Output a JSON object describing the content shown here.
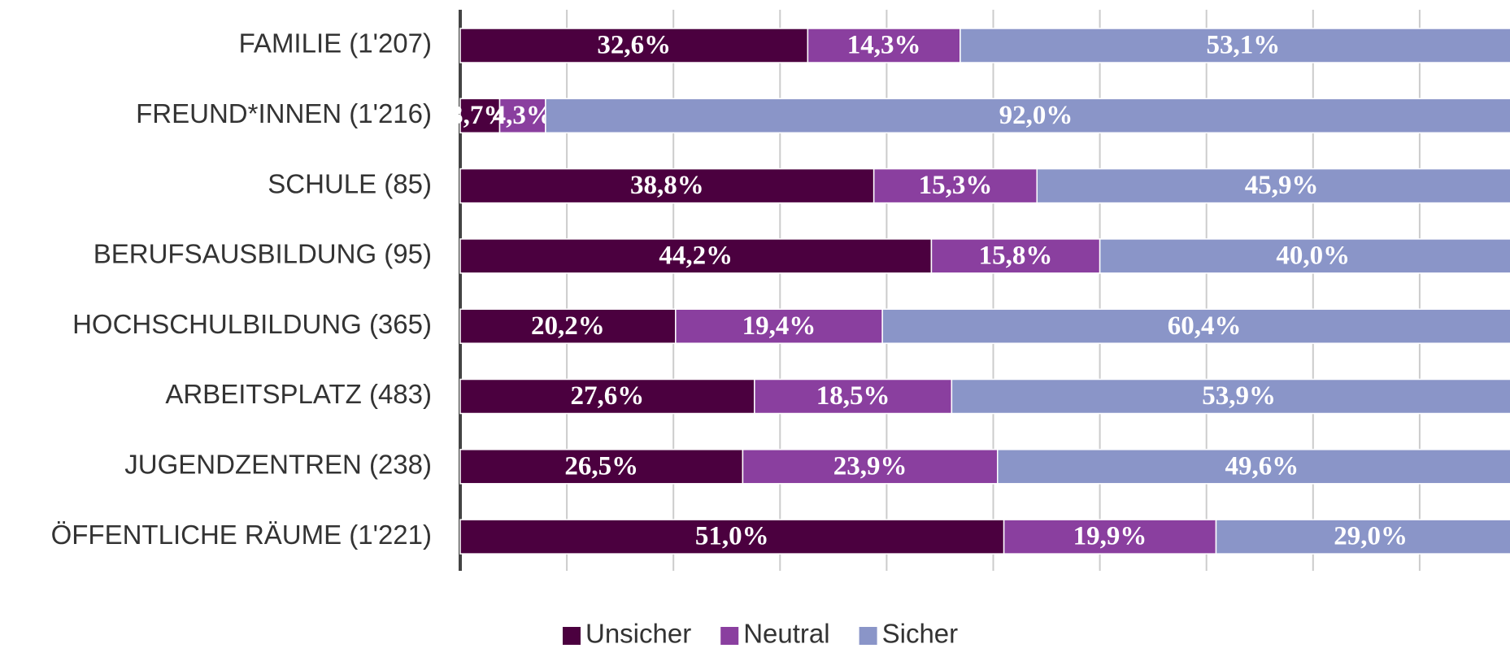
{
  "chart_data": {
    "type": "stacked-barh",
    "categories": [
      "FAMILIE (1'207)",
      "FREUND*INNEN (1'216)",
      "SCHULE (85)",
      "BERUFSAUSBILDUNG (95)",
      "HOCHSCHULBILDUNG (365)",
      "ARBEITSPLATZ (483)",
      "JUGENDZENTREN (238)",
      "ÖFFENTLICHE RÄUME (1'221)"
    ],
    "series": [
      {
        "name": "Unsicher",
        "color": "#4b003f",
        "values": [
          32.6,
          3.7,
          38.8,
          44.2,
          20.2,
          27.6,
          26.5,
          51.0
        ],
        "value_labels": [
          "32,6%",
          "3,7%",
          "38,8%",
          "44,2%",
          "20,2%",
          "27,6%",
          "26,5%",
          "51,0%"
        ]
      },
      {
        "name": "Neutral",
        "color": "#8a3f9f",
        "values": [
          14.3,
          4.3,
          15.3,
          15.8,
          19.4,
          18.5,
          23.9,
          19.9
        ],
        "value_labels": [
          "14,3%",
          "4,3%",
          "15,3%",
          "15,8%",
          "19,4%",
          "18,5%",
          "23,9%",
          "19,9%"
        ]
      },
      {
        "name": "Sicher",
        "color": "#8a95c8",
        "values": [
          53.1,
          92.0,
          45.9,
          40.0,
          60.4,
          53.9,
          49.6,
          29.0
        ],
        "value_labels": [
          "53,1%",
          "92,0%",
          "45,9%",
          "40,0%",
          "60,4%",
          "53,9%",
          "49,6%",
          "29,0%"
        ]
      }
    ],
    "xlim": [
      0,
      100
    ],
    "xticks": [
      0,
      10,
      20,
      30,
      40,
      50,
      60,
      70,
      80,
      90,
      100
    ],
    "grid": true,
    "legend": "bottom"
  }
}
